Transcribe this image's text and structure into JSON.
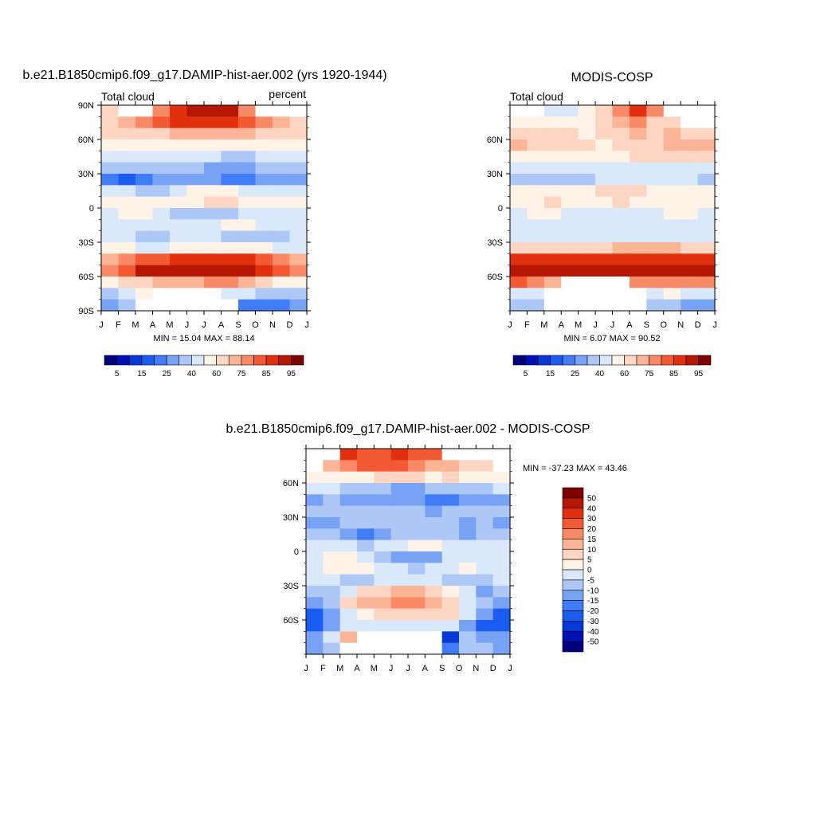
{
  "palette_abs": [
    "#00007f",
    "#0010b4",
    "#0638d8",
    "#1a5cf0",
    "#3f7cf6",
    "#78a3f5",
    "#adc7f7",
    "#d9e8fb",
    "#fff3e8",
    "#fdd5c2",
    "#fbb496",
    "#f98a68",
    "#f35a34",
    "#e0300e",
    "#b61704",
    "#7f0000"
  ],
  "palette_diff": [
    "#00007f",
    "#0010b4",
    "#0638d8",
    "#1a5cf0",
    "#3f7cf6",
    "#78a3f5",
    "#adc7f7",
    "#d9e8fb",
    "#fff3e8",
    "#fdd5c2",
    "#fbb496",
    "#f98a68",
    "#f35a34",
    "#e0300e",
    "#b61704",
    "#7f0000"
  ],
  "chart_data": [
    {
      "type": "heatmap",
      "title": "b.e21.B1850cmip6.f09_g17.DAMIP-hist-aer.002 (yrs 1920-1944)",
      "left_label": "Total cloud",
      "right_label": "percent",
      "x_ticks": [
        "J",
        "F",
        "M",
        "A",
        "M",
        "J",
        "J",
        "A",
        "S",
        "O",
        "N",
        "D",
        "J"
      ],
      "y_ticks": [
        "90N",
        "60N",
        "30N",
        "0",
        "30S",
        "60S",
        "90S"
      ],
      "stats": "MIN =  15.04 MAX =  88.14",
      "latitudes": [
        85,
        75,
        65,
        55,
        45,
        35,
        25,
        15,
        5,
        -5,
        -15,
        -25,
        -35,
        -45,
        -55,
        -65,
        -75,
        -85
      ],
      "months": [
        "J",
        "F",
        "M",
        "A",
        "M",
        "J",
        "J",
        "A",
        "S",
        "O",
        "N",
        "D"
      ],
      "values": [
        [
          60,
          60,
          75,
          70,
          80,
          88,
          88,
          85,
          72,
          60,
          60,
          60
        ],
        [
          62,
          65,
          70,
          75,
          80,
          82,
          82,
          80,
          75,
          70,
          66,
          64
        ],
        [
          62,
          62,
          60,
          62,
          65,
          68,
          66,
          65,
          65,
          64,
          62,
          62
        ],
        [
          58,
          58,
          56,
          55,
          56,
          55,
          55,
          55,
          56,
          57,
          58,
          58
        ],
        [
          45,
          45,
          45,
          42,
          40,
          42,
          40,
          38,
          38,
          40,
          42,
          44
        ],
        [
          30,
          30,
          32,
          32,
          34,
          35,
          28,
          26,
          28,
          30,
          30,
          30
        ],
        [
          20,
          18,
          20,
          25,
          28,
          28,
          26,
          24,
          24,
          26,
          26,
          25
        ],
        [
          40,
          40,
          38,
          38,
          42,
          50,
          55,
          50,
          45,
          45,
          44,
          40
        ],
        [
          50,
          55,
          55,
          52,
          55,
          58,
          62,
          60,
          55,
          55,
          50,
          50
        ],
        [
          48,
          50,
          50,
          42,
          35,
          30,
          30,
          35,
          45,
          48,
          48,
          46
        ],
        [
          42,
          42,
          45,
          45,
          48,
          48,
          48,
          50,
          50,
          48,
          45,
          42
        ],
        [
          40,
          40,
          38,
          38,
          40,
          42,
          40,
          38,
          38,
          38,
          38,
          40
        ],
        [
          50,
          50,
          48,
          48,
          50,
          50,
          50,
          52,
          52,
          50,
          48,
          48
        ],
        [
          68,
          72,
          75,
          78,
          80,
          80,
          80,
          80,
          80,
          78,
          72,
          68
        ],
        [
          72,
          78,
          85,
          86,
          86,
          86,
          86,
          86,
          85,
          80,
          75,
          72
        ],
        [
          55,
          60,
          62,
          65,
          68,
          68,
          70,
          70,
          68,
          60,
          58,
          55
        ],
        [
          35,
          40,
          50,
          45,
          45,
          40,
          38,
          40,
          40,
          38,
          32,
          30
        ],
        [
          25,
          30,
          28,
          28,
          25,
          25,
          28,
          25,
          22,
          20,
          22,
          25
        ]
      ],
      "missing": [
        [
          0,
          1
        ],
        [
          0,
          2
        ],
        [
          0,
          9
        ],
        [
          0,
          10
        ],
        [
          0,
          11
        ],
        [
          16,
          3
        ],
        [
          16,
          4
        ],
        [
          16,
          5
        ],
        [
          16,
          6
        ],
        [
          17,
          2
        ],
        [
          17,
          3
        ],
        [
          17,
          4
        ],
        [
          17,
          5
        ],
        [
          17,
          6
        ],
        [
          17,
          7
        ]
      ],
      "colorbar": {
        "labels": [
          "5",
          "15",
          "25",
          "40",
          "60",
          "75",
          "85",
          "95"
        ],
        "levels": [
          5,
          10,
          15,
          20,
          25,
          30,
          40,
          50,
          60,
          65,
          70,
          75,
          80,
          85,
          90,
          95
        ]
      }
    },
    {
      "type": "heatmap",
      "title": "MODIS-COSP",
      "left_label": "Total cloud",
      "right_label": "",
      "x_ticks": [
        "J",
        "F",
        "M",
        "A",
        "M",
        "J",
        "J",
        "A",
        "S",
        "O",
        "N",
        "D",
        "J"
      ],
      "y_ticks": [
        "60N",
        "30N",
        "0",
        "30S",
        "60S"
      ],
      "stats": "MIN =   6.07 MAX =  90.52",
      "latitudes": [
        85,
        75,
        65,
        55,
        45,
        35,
        25,
        15,
        5,
        -5,
        -15,
        -25,
        -35,
        -45,
        -55,
        -65,
        -75,
        -85
      ],
      "months": [
        "J",
        "F",
        "M",
        "A",
        "M",
        "J",
        "J",
        "A",
        "S",
        "O",
        "N",
        "D"
      ],
      "values": [
        [
          50,
          50,
          45,
          45,
          55,
          60,
          70,
          80,
          70,
          60,
          55,
          50
        ],
        [
          55,
          55,
          55,
          55,
          55,
          60,
          65,
          70,
          60,
          62,
          60,
          60
        ],
        [
          60,
          62,
          60,
          60,
          58,
          60,
          62,
          65,
          60,
          65,
          62,
          62
        ],
        [
          65,
          62,
          60,
          60,
          60,
          58,
          60,
          62,
          62,
          65,
          66,
          66
        ],
        [
          58,
          55,
          55,
          56,
          56,
          56,
          58,
          60,
          60,
          60,
          60,
          60
        ],
        [
          45,
          45,
          42,
          40,
          42,
          42,
          40,
          42,
          42,
          44,
          44,
          45
        ],
        [
          35,
          30,
          32,
          35,
          38,
          40,
          42,
          40,
          40,
          42,
          40,
          38
        ],
        [
          55,
          55,
          55,
          58,
          58,
          60,
          62,
          60,
          58,
          55,
          55,
          55
        ],
        [
          55,
          58,
          60,
          58,
          56,
          58,
          60,
          58,
          58,
          58,
          56,
          55
        ],
        [
          48,
          50,
          50,
          48,
          46,
          46,
          46,
          48,
          48,
          50,
          50,
          48
        ],
        [
          40,
          42,
          42,
          42,
          44,
          45,
          46,
          46,
          44,
          42,
          42,
          40
        ],
        [
          42,
          44,
          44,
          44,
          42,
          42,
          42,
          42,
          44,
          44,
          44,
          42
        ],
        [
          60,
          62,
          62,
          62,
          64,
          64,
          66,
          66,
          66,
          66,
          64,
          62
        ],
        [
          80,
          82,
          82,
          82,
          82,
          82,
          82,
          82,
          82,
          82,
          82,
          80
        ],
        [
          88,
          88,
          86,
          86,
          88,
          88,
          88,
          88,
          88,
          88,
          88,
          88
        ],
        [
          75,
          70,
          68,
          68,
          70,
          72,
          75,
          72,
          70,
          72,
          70,
          72
        ],
        [
          45,
          40,
          38,
          40,
          35,
          35,
          38,
          42,
          45,
          50,
          45,
          40
        ],
        [
          35,
          30,
          25,
          28,
          25,
          22,
          25,
          30,
          35,
          30,
          25,
          28
        ]
      ],
      "missing": [
        [
          0,
          0
        ],
        [
          0,
          1
        ],
        [
          0,
          9
        ],
        [
          0,
          10
        ],
        [
          0,
          11
        ],
        [
          1,
          10
        ],
        [
          1,
          11
        ],
        [
          15,
          3
        ],
        [
          15,
          4
        ],
        [
          15,
          5
        ],
        [
          15,
          6
        ],
        [
          16,
          2
        ],
        [
          16,
          3
        ],
        [
          16,
          4
        ],
        [
          16,
          5
        ],
        [
          16,
          6
        ],
        [
          16,
          7
        ],
        [
          17,
          2
        ],
        [
          17,
          3
        ],
        [
          17,
          4
        ],
        [
          17,
          5
        ],
        [
          17,
          6
        ],
        [
          17,
          7
        ]
      ],
      "colorbar": {
        "labels": [
          "5",
          "15",
          "25",
          "40",
          "60",
          "75",
          "85",
          "95"
        ],
        "levels": [
          5,
          10,
          15,
          20,
          25,
          30,
          40,
          50,
          60,
          65,
          70,
          75,
          80,
          85,
          90,
          95
        ]
      }
    },
    {
      "type": "heatmap",
      "title": "b.e21.B1850cmip6.f09_g17.DAMIP-hist-aer.002 - MODIS-COSP",
      "x_ticks": [
        "J",
        "F",
        "M",
        "A",
        "M",
        "J",
        "J",
        "A",
        "S",
        "O",
        "N",
        "D",
        "J"
      ],
      "y_ticks": [
        "60N",
        "30N",
        "0",
        "30S",
        "60S"
      ],
      "stats": "MIN = -37.23 MAX =  43.46",
      "latitudes": [
        85,
        75,
        65,
        55,
        45,
        35,
        25,
        15,
        5,
        -5,
        -15,
        -25,
        -35,
        -45,
        -55,
        -65,
        -75,
        -85
      ],
      "months": [
        "J",
        "F",
        "M",
        "A",
        "M",
        "J",
        "J",
        "A",
        "S",
        "O",
        "N",
        "D"
      ],
      "values": [
        [
          0,
          0,
          30,
          28,
          25,
          30,
          25,
          20,
          0,
          0,
          0,
          0
        ],
        [
          8,
          10,
          15,
          20,
          22,
          20,
          18,
          12,
          10,
          5,
          5,
          3
        ],
        [
          2,
          0,
          2,
          2,
          5,
          8,
          5,
          0,
          5,
          0,
          0,
          0
        ],
        [
          -5,
          -5,
          -8,
          -8,
          -10,
          -12,
          -15,
          -10,
          -8,
          -8,
          -6,
          -5
        ],
        [
          -12,
          -10,
          -12,
          -15,
          -15,
          -12,
          -15,
          -20,
          -20,
          -15,
          -15,
          -12
        ],
        [
          -8,
          -8,
          -10,
          -8,
          -6,
          -6,
          -10,
          -12,
          -10,
          -10,
          -10,
          -8
        ],
        [
          -15,
          -12,
          -10,
          -10,
          -8,
          -8,
          -10,
          -10,
          -10,
          -12,
          -10,
          -12
        ],
        [
          -10,
          -10,
          -15,
          -20,
          -15,
          -10,
          -8,
          -10,
          -10,
          -12,
          -10,
          -10
        ],
        [
          -5,
          -3,
          -5,
          -8,
          -5,
          -2,
          2,
          2,
          -5,
          -3,
          -5,
          -5
        ],
        [
          -3,
          2,
          3,
          -5,
          -10,
          -15,
          -15,
          -12,
          -5,
          -5,
          -3,
          -5
        ],
        [
          -2,
          0,
          2,
          2,
          -2,
          -5,
          -8,
          -5,
          -2,
          0,
          -2,
          -2
        ],
        [
          -5,
          -5,
          -6,
          -6,
          -5,
          -2,
          -2,
          -4,
          -6,
          -6,
          -6,
          -5
        ],
        [
          -8,
          -10,
          -3,
          5,
          8,
          10,
          10,
          8,
          2,
          -5,
          -12,
          -10
        ],
        [
          -15,
          -10,
          5,
          10,
          12,
          15,
          15,
          12,
          8,
          -2,
          -10,
          -15
        ],
        [
          -22,
          -15,
          -5,
          2,
          5,
          5,
          5,
          5,
          5,
          -5,
          -15,
          -22
        ],
        [
          -25,
          -15,
          -5,
          -5,
          -3,
          -3,
          -5,
          -5,
          -5,
          -15,
          -22,
          -28
        ],
        [
          -15,
          -5,
          10,
          0,
          0,
          0,
          0,
          -5,
          -35,
          -10,
          -15,
          -15
        ],
        [
          -15,
          -10,
          0,
          0,
          0,
          0,
          0,
          0,
          -20,
          -10,
          -10,
          -15
        ]
      ],
      "missing": [
        [
          0,
          0
        ],
        [
          0,
          1
        ],
        [
          0,
          8
        ],
        [
          0,
          9
        ],
        [
          0,
          10
        ],
        [
          0,
          11
        ],
        [
          1,
          0
        ],
        [
          1,
          11
        ],
        [
          16,
          3
        ],
        [
          16,
          4
        ],
        [
          16,
          5
        ],
        [
          16,
          6
        ],
        [
          16,
          7
        ],
        [
          17,
          2
        ],
        [
          17,
          3
        ],
        [
          17,
          4
        ],
        [
          17,
          5
        ],
        [
          17,
          6
        ],
        [
          17,
          7
        ]
      ],
      "colorbar": {
        "labels": [
          "50",
          "40",
          "30",
          "20",
          "15",
          "10",
          "5",
          "0",
          "-5",
          "-10",
          "-15",
          "-20",
          "-30",
          "-40",
          "-50"
        ],
        "levels": [
          -50,
          -40,
          -30,
          -20,
          -15,
          -10,
          -5,
          0,
          5,
          10,
          15,
          20,
          30,
          40,
          50
        ]
      }
    }
  ]
}
